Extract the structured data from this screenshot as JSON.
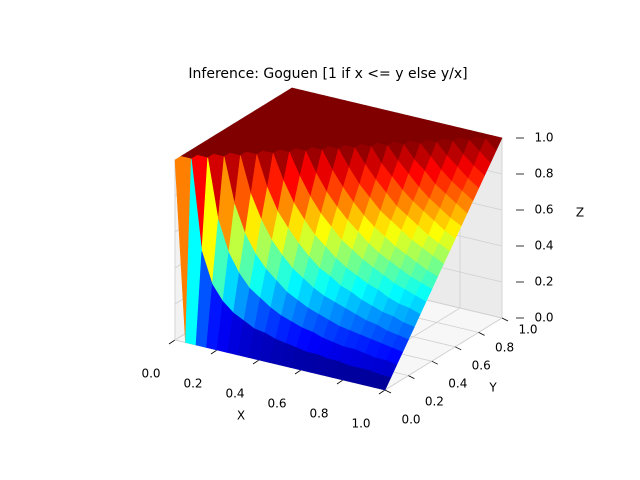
{
  "chart_data": {
    "type": "surface",
    "title": "Inference: Goguen [1 if x <= y else y/x]",
    "x_label": "X",
    "y_label": "Y",
    "z_label": "Z",
    "colormap": "jet",
    "grid": true,
    "xlim": [
      0,
      1
    ],
    "ylim": [
      0,
      1
    ],
    "zlim": [
      0,
      1
    ],
    "xticks": [
      {
        "value": 0,
        "label": "0.0"
      },
      0.2,
      0.4,
      0.6,
      0.8,
      {
        "value": 1,
        "label": "1.0"
      }
    ],
    "yticks": [
      {
        "value": 0,
        "label": "0.0"
      },
      0.2,
      0.4,
      0.6,
      0.8,
      {
        "value": 1,
        "label": "1.0"
      }
    ],
    "zticks": [
      {
        "value": 0,
        "label": "0.0"
      },
      0.2,
      0.4,
      0.6,
      0.8,
      {
        "value": 1,
        "label": "1.0"
      }
    ],
    "x": [
      0,
      0.05,
      0.1,
      0.15,
      0.2,
      0.25,
      0.3,
      0.35,
      0.4,
      0.45,
      0.5,
      0.55,
      0.6,
      0.65,
      0.7,
      0.75,
      0.8,
      0.85,
      0.9,
      0.95,
      1
    ],
    "y": [
      0,
      0.05,
      0.1,
      0.15,
      0.2,
      0.25,
      0.3,
      0.35,
      0.4,
      0.45,
      0.5,
      0.55,
      0.6,
      0.65,
      0.7,
      0.75,
      0.8,
      0.85,
      0.9,
      0.95,
      1
    ],
    "z": [
      [
        1,
        0,
        0,
        0,
        0,
        0,
        0,
        0,
        0,
        0,
        0,
        0,
        0,
        0,
        0,
        0,
        0,
        0,
        0,
        0,
        0
      ],
      [
        1,
        1,
        0.5,
        0.33,
        0.25,
        0.2,
        0.17,
        0.14,
        0.13,
        0.11,
        0.1,
        0.09,
        0.08,
        0.08,
        0.07,
        0.07,
        0.06,
        0.06,
        0.06,
        0.05,
        0.05
      ],
      [
        1,
        1,
        1,
        0.67,
        0.5,
        0.4,
        0.33,
        0.29,
        0.25,
        0.22,
        0.2,
        0.18,
        0.17,
        0.15,
        0.14,
        0.13,
        0.13,
        0.12,
        0.11,
        0.11,
        0.1
      ],
      [
        1,
        1,
        1,
        1,
        0.75,
        0.6,
        0.5,
        0.43,
        0.38,
        0.33,
        0.3,
        0.27,
        0.25,
        0.23,
        0.21,
        0.2,
        0.19,
        0.18,
        0.17,
        0.16,
        0.15
      ],
      [
        1,
        1,
        1,
        1,
        1,
        0.8,
        0.67,
        0.57,
        0.5,
        0.44,
        0.4,
        0.36,
        0.33,
        0.31,
        0.29,
        0.27,
        0.25,
        0.24,
        0.22,
        0.21,
        0.2
      ],
      [
        1,
        1,
        1,
        1,
        1,
        1,
        0.83,
        0.71,
        0.63,
        0.56,
        0.5,
        0.45,
        0.42,
        0.38,
        0.36,
        0.33,
        0.31,
        0.29,
        0.28,
        0.26,
        0.25
      ],
      [
        1,
        1,
        1,
        1,
        1,
        1,
        1,
        0.86,
        0.75,
        0.67,
        0.6,
        0.55,
        0.5,
        0.46,
        0.43,
        0.4,
        0.38,
        0.35,
        0.33,
        0.32,
        0.3
      ],
      [
        1,
        1,
        1,
        1,
        1,
        1,
        1,
        1,
        0.88,
        0.78,
        0.7,
        0.64,
        0.58,
        0.54,
        0.5,
        0.47,
        0.44,
        0.41,
        0.39,
        0.37,
        0.35
      ],
      [
        1,
        1,
        1,
        1,
        1,
        1,
        1,
        1,
        1,
        0.89,
        0.8,
        0.73,
        0.67,
        0.62,
        0.57,
        0.53,
        0.5,
        0.47,
        0.44,
        0.42,
        0.4
      ],
      [
        1,
        1,
        1,
        1,
        1,
        1,
        1,
        1,
        1,
        1,
        0.9,
        0.82,
        0.75,
        0.69,
        0.64,
        0.6,
        0.56,
        0.53,
        0.5,
        0.47,
        0.45
      ],
      [
        1,
        1,
        1,
        1,
        1,
        1,
        1,
        1,
        1,
        1,
        1,
        0.91,
        0.83,
        0.77,
        0.71,
        0.67,
        0.63,
        0.59,
        0.56,
        0.53,
        0.5
      ],
      [
        1,
        1,
        1,
        1,
        1,
        1,
        1,
        1,
        1,
        1,
        1,
        1,
        0.92,
        0.85,
        0.79,
        0.73,
        0.69,
        0.65,
        0.61,
        0.58,
        0.55
      ],
      [
        1,
        1,
        1,
        1,
        1,
        1,
        1,
        1,
        1,
        1,
        1,
        1,
        1,
        0.92,
        0.86,
        0.8,
        0.75,
        0.71,
        0.67,
        0.63,
        0.6
      ],
      [
        1,
        1,
        1,
        1,
        1,
        1,
        1,
        1,
        1,
        1,
        1,
        1,
        1,
        1,
        0.93,
        0.87,
        0.81,
        0.76,
        0.72,
        0.68,
        0.65
      ],
      [
        1,
        1,
        1,
        1,
        1,
        1,
        1,
        1,
        1,
        1,
        1,
        1,
        1,
        1,
        1,
        0.93,
        0.88,
        0.82,
        0.78,
        0.74,
        0.7
      ],
      [
        1,
        1,
        1,
        1,
        1,
        1,
        1,
        1,
        1,
        1,
        1,
        1,
        1,
        1,
        1,
        1,
        0.94,
        0.88,
        0.83,
        0.79,
        0.75
      ],
      [
        1,
        1,
        1,
        1,
        1,
        1,
        1,
        1,
        1,
        1,
        1,
        1,
        1,
        1,
        1,
        1,
        1,
        0.94,
        0.89,
        0.84,
        0.8
      ],
      [
        1,
        1,
        1,
        1,
        1,
        1,
        1,
        1,
        1,
        1,
        1,
        1,
        1,
        1,
        1,
        1,
        1,
        1,
        0.94,
        0.89,
        0.85
      ],
      [
        1,
        1,
        1,
        1,
        1,
        1,
        1,
        1,
        1,
        1,
        1,
        1,
        1,
        1,
        1,
        1,
        1,
        1,
        1,
        0.95,
        0.9
      ],
      [
        1,
        1,
        1,
        1,
        1,
        1,
        1,
        1,
        1,
        1,
        1,
        1,
        1,
        1,
        1,
        1,
        1,
        1,
        1,
        1,
        0.95
      ],
      [
        1,
        1,
        1,
        1,
        1,
        1,
        1,
        1,
        1,
        1,
        1,
        1,
        1,
        1,
        1,
        1,
        1,
        1,
        1,
        1,
        1
      ]
    ]
  }
}
